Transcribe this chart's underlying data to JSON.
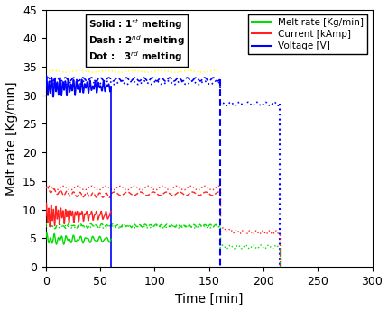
{
  "title": "",
  "xlabel": "Time [min]",
  "ylabel": "Melt rate [Kg/min]",
  "xlim": [
    0,
    300
  ],
  "ylim": [
    0,
    45
  ],
  "xticks": [
    0,
    50,
    100,
    150,
    200,
    250,
    300
  ],
  "yticks": [
    0,
    5,
    10,
    15,
    20,
    25,
    30,
    35,
    40,
    45
  ],
  "colors": {
    "green": "#00dd00",
    "red": "#ff2020",
    "blue": "#0000ff",
    "yellow": "#ffff00"
  },
  "figsize": [
    4.3,
    3.44
  ],
  "dpi": 100
}
